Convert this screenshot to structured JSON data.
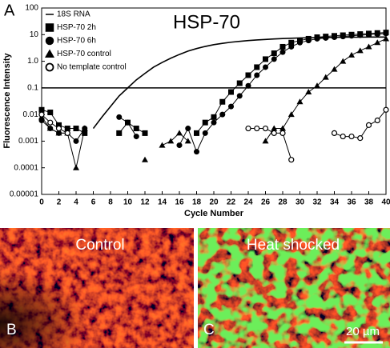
{
  "chart_data": {
    "type": "line",
    "panel_letter": "A",
    "title": "HSP-70",
    "x_label": "Cycle Number",
    "y_label": "Fluorescence Intensity",
    "log_y": true,
    "legend": "upper left",
    "threshold": 0.1,
    "xlim": [
      0,
      40
    ],
    "xticks": [
      0,
      2,
      4,
      6,
      8,
      10,
      12,
      14,
      16,
      18,
      20,
      22,
      24,
      26,
      28,
      30,
      32,
      34,
      36,
      38,
      40
    ],
    "ylim": [
      1e-05,
      100
    ],
    "yticks": [
      {
        "value": 1e-05,
        "label": "0.00001"
      },
      0.0001,
      0.001,
      0.01,
      0.1,
      {
        "value": 1,
        "label": "1.0"
      },
      10,
      100
    ],
    "x": [
      0,
      1,
      2,
      3,
      4,
      5,
      6,
      7,
      8,
      9,
      10,
      11,
      12,
      13,
      14,
      15,
      16,
      17,
      18,
      19,
      20,
      21,
      22,
      23,
      24,
      25,
      26,
      27,
      28,
      29,
      30,
      31,
      32,
      33,
      34,
      35,
      36,
      37,
      38,
      39,
      40
    ],
    "series": [
      {
        "name": "18S RNA",
        "marker": "none",
        "color": "#000000",
        "values": [
          null,
          null,
          null,
          null,
          null,
          null,
          0.003,
          0.008,
          0.02,
          0.05,
          0.1,
          0.2,
          0.35,
          0.6,
          0.9,
          1.3,
          1.8,
          2.4,
          3,
          3.6,
          4.2,
          4.7,
          5.2,
          5.6,
          6,
          6.3,
          6.6,
          6.9,
          7.1,
          7.3,
          7.5,
          7.6,
          7.7,
          7.8,
          7.9,
          8,
          8,
          8,
          8.1,
          8.1,
          8.1
        ]
      },
      {
        "name": "HSP-70 2h",
        "marker": "square",
        "color": "#000000",
        "values": [
          0.015,
          0.012,
          0.004,
          0.003,
          0.003,
          0.002,
          null,
          null,
          null,
          0.002,
          0.005,
          0.003,
          0.002,
          null,
          null,
          null,
          null,
          null,
          0.002,
          0.005,
          0.008,
          0.03,
          0.07,
          0.15,
          0.3,
          0.6,
          1.2,
          2,
          3.5,
          5,
          6,
          7,
          8,
          8.5,
          9,
          9.5,
          10,
          10.5,
          11,
          11.5,
          12
        ]
      },
      {
        "name": "HSP-70 6h",
        "marker": "circle",
        "color": "#000000",
        "values": [
          0.006,
          0.003,
          0.002,
          0.002,
          0.001,
          0.003,
          null,
          null,
          null,
          0.008,
          0.005,
          0.0015,
          null,
          null,
          null,
          null,
          0.0007,
          0.003,
          0.0004,
          0.002,
          0.005,
          0.01,
          0.02,
          0.05,
          0.12,
          0.3,
          0.6,
          1.2,
          2.2,
          3.5,
          5,
          6,
          7,
          7.5,
          8,
          8.5,
          9,
          9.5,
          10,
          10.5,
          11
        ]
      },
      {
        "name": "HSP-70 control",
        "marker": "triangle",
        "color": "#000000",
        "values": [
          0.008,
          0.003,
          0.002,
          0.002,
          0.0001,
          0.003,
          null,
          null,
          null,
          null,
          null,
          null,
          0.0002,
          null,
          0.0007,
          0.001,
          0.002,
          0.001,
          null,
          null,
          null,
          null,
          null,
          null,
          null,
          null,
          0.001,
          0.003,
          0.003,
          0.01,
          0.03,
          0.07,
          0.12,
          0.25,
          0.5,
          1,
          1.7,
          2.5,
          3.5,
          5,
          7
        ]
      },
      {
        "name": "No template control",
        "marker": "open-circle",
        "color": "#000000",
        "values": [
          0.01,
          0.005,
          0.003,
          0.002,
          null,
          null,
          null,
          null,
          null,
          null,
          null,
          null,
          null,
          null,
          null,
          null,
          null,
          null,
          null,
          null,
          null,
          null,
          null,
          null,
          0.003,
          0.003,
          0.003,
          0.002,
          0.002,
          0.0002,
          null,
          null,
          null,
          null,
          0.002,
          0.0015,
          0.0015,
          0.0013,
          0.004,
          0.006,
          0.015
        ]
      }
    ]
  },
  "panels": [
    {
      "letter": "B",
      "label": "Control"
    },
    {
      "letter": "C",
      "label": "Heat shocked"
    }
  ],
  "scale_bar_label": "20 µm"
}
